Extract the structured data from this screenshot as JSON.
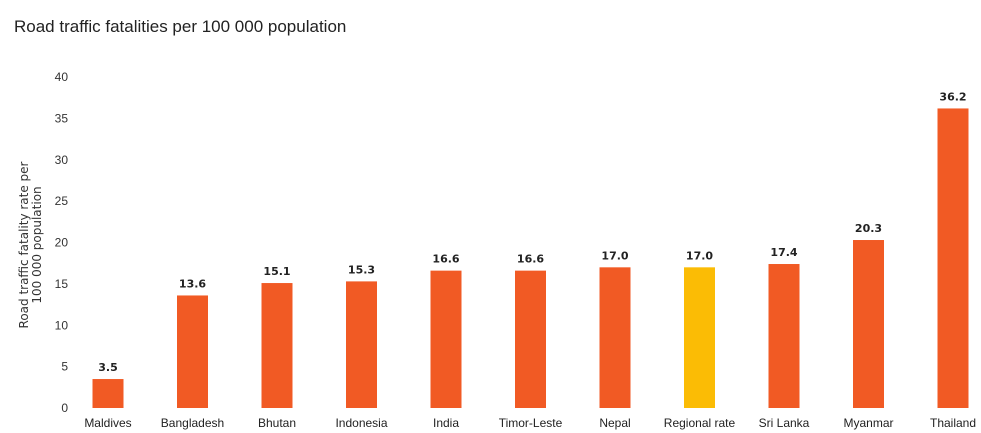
{
  "chart_data": {
    "type": "bar",
    "title": "Road traffic fatalities per 100 000 population",
    "ylabel_lines": [
      "Road traffic fatality rate per",
      "100 000 population"
    ],
    "xlabel": "",
    "ylim": [
      0,
      40
    ],
    "yticks": [
      0,
      5,
      10,
      15,
      20,
      25,
      30,
      35,
      40
    ],
    "grid": false,
    "categories": [
      "Maldives",
      "Bangladesh",
      "Bhutan",
      "Indonesia",
      "India",
      "Timor-Leste",
      "Nepal",
      "Regional rate",
      "Sri Lanka",
      "Myanmar",
      "Thailand"
    ],
    "values": [
      3.5,
      13.6,
      15.1,
      15.3,
      16.6,
      16.6,
      17.0,
      17.0,
      17.4,
      20.3,
      36.2
    ],
    "data_labels": [
      "3.5",
      "13.6",
      "15.1",
      "15.3",
      "16.6",
      "16.6",
      "17.0",
      "17.0",
      "17.4",
      "20.3",
      "36.2"
    ],
    "colors": {
      "bar": "#f15a24",
      "highlight": "#fbbc05",
      "highlight_category": "Regional rate"
    }
  }
}
